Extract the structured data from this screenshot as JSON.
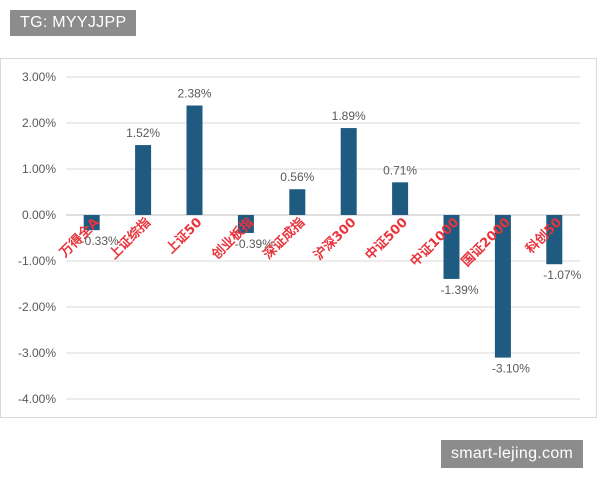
{
  "tag": "TG: MYYJJPP",
  "watermark": "smart-lejing.com",
  "colors": {
    "bar": "#1f5a80",
    "category_label": "#e8343c",
    "grid": "#d9d9d9",
    "text": "#595959"
  },
  "chart_data": {
    "type": "bar",
    "categories": [
      "万得全A",
      "上证综指",
      "上证50",
      "创业板指",
      "深证成指",
      "沪深300",
      "中证500",
      "中证1000",
      "国证2000",
      "科创50"
    ],
    "values": [
      -0.33,
      1.52,
      2.38,
      -0.39,
      0.56,
      1.89,
      0.71,
      -1.39,
      -3.1,
      -1.07
    ],
    "data_labels": [
      "-0.33%",
      "1.52%",
      "2.38%",
      "-0.39%",
      "0.56%",
      "1.89%",
      "0.71%",
      "-1.39%",
      "-3.10%",
      "-1.07%"
    ],
    "ylim": [
      -4,
      3
    ],
    "yticks": [
      3,
      2,
      1,
      0,
      -1,
      -2,
      -3,
      -4
    ],
    "ytick_labels": [
      "3.00%",
      "2.00%",
      "1.00%",
      "0.00%",
      "-1.00%",
      "-2.00%",
      "-3.00%",
      "-4.00%"
    ],
    "grid": true,
    "legend": "none",
    "title": "",
    "xlabel": "",
    "ylabel": ""
  }
}
